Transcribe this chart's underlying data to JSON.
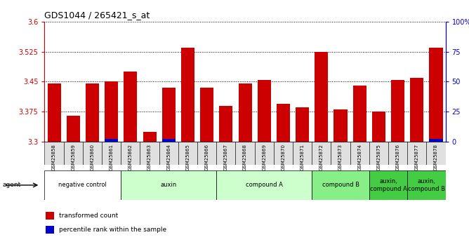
{
  "title": "GDS1044 / 265421_s_at",
  "samples": [
    "GSM25858",
    "GSM25859",
    "GSM25860",
    "GSM25861",
    "GSM25862",
    "GSM25863",
    "GSM25864",
    "GSM25865",
    "GSM25866",
    "GSM25867",
    "GSM25868",
    "GSM25869",
    "GSM25870",
    "GSM25871",
    "GSM25872",
    "GSM25873",
    "GSM25874",
    "GSM25875",
    "GSM25876",
    "GSM25877",
    "GSM25878"
  ],
  "transformed_count": [
    3.445,
    3.365,
    3.445,
    3.45,
    3.475,
    3.325,
    3.435,
    3.535,
    3.435,
    3.39,
    3.445,
    3.455,
    3.395,
    3.385,
    3.525,
    3.38,
    3.44,
    3.375,
    3.455,
    3.46,
    3.535
  ],
  "percentile_rank": [
    0,
    0,
    0,
    2,
    0,
    0,
    2,
    0,
    0,
    0,
    0,
    0,
    0,
    0,
    0,
    0,
    0,
    0,
    0,
    0,
    2
  ],
  "ylim": [
    3.3,
    3.6
  ],
  "y_ticks": [
    3.3,
    3.375,
    3.45,
    3.525,
    3.6
  ],
  "y_ticklabels": [
    "3.3",
    "3.375",
    "3.45",
    "3.525",
    "3.6"
  ],
  "right_y_ticks": [
    0,
    25,
    50,
    75,
    100
  ],
  "right_y_ticklabels": [
    "0",
    "25",
    "50",
    "75",
    "100%"
  ],
  "bar_color": "#cc0000",
  "percentile_color": "#0000cc",
  "groups": [
    {
      "label": "negative control",
      "start": 0,
      "end": 3,
      "color": "#ffffff",
      "n": 4
    },
    {
      "label": "auxin",
      "start": 4,
      "end": 8,
      "color": "#ccffcc",
      "n": 5
    },
    {
      "label": "compound A",
      "start": 9,
      "end": 13,
      "color": "#ccffcc",
      "n": 5
    },
    {
      "label": "compound B",
      "start": 14,
      "end": 16,
      "color": "#88ee88",
      "n": 3
    },
    {
      "label": "auxin,\ncompound A",
      "start": 17,
      "end": 18,
      "color": "#44cc44",
      "n": 2
    },
    {
      "label": "auxin,\ncompound B",
      "start": 19,
      "end": 20,
      "color": "#44cc44",
      "n": 2
    }
  ],
  "legend_items": [
    {
      "label": "transformed count",
      "color": "#cc0000"
    },
    {
      "label": "percentile rank within the sample",
      "color": "#0000cc"
    }
  ],
  "agent_label": "agent"
}
